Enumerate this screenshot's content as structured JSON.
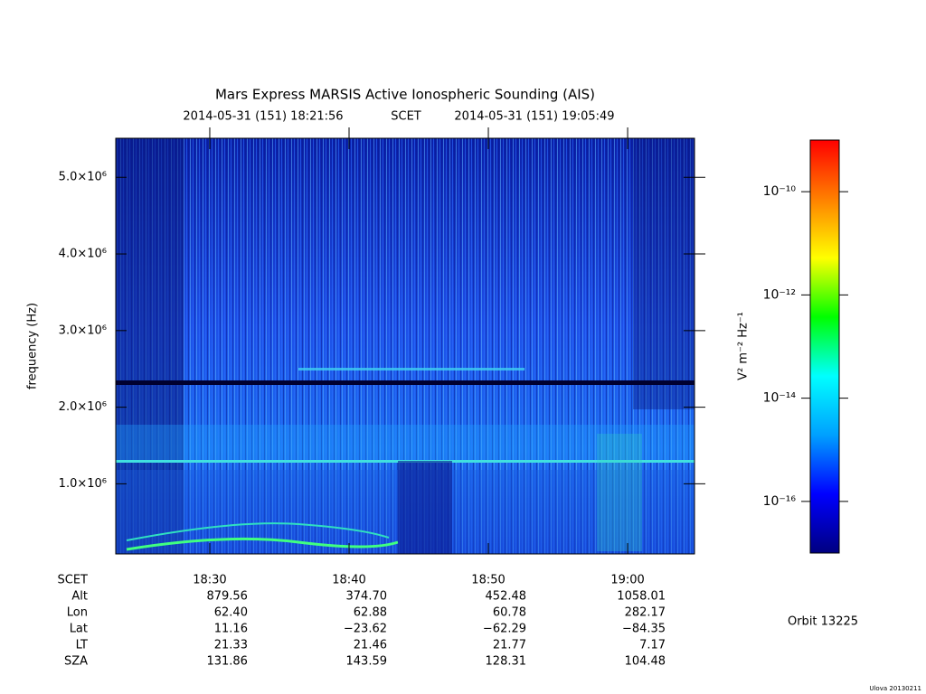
{
  "chart_data": {
    "type": "spectrogram",
    "title": "Mars Express MARSIS Active Ionospheric Sounding (AIS)",
    "subtitle": {
      "start": "2014-05-31 (151) 18:21:56",
      "label": "SCET",
      "end": "2014-05-31 (151) 19:05:49"
    },
    "y_label": "frequency (Hz)",
    "ylim": [
      85000,
      5510000
    ],
    "yticks": [
      {
        "value": 1000000,
        "label": "1.0×10⁶"
      },
      {
        "value": 2000000,
        "label": "2.0×10⁶"
      },
      {
        "value": 3000000,
        "label": "3.0×10⁶"
      },
      {
        "value": 4000000,
        "label": "4.0×10⁶"
      },
      {
        "value": 5000000,
        "label": "5.0×10⁶"
      }
    ],
    "xlim": [
      "18:23:15",
      "19:04:48"
    ],
    "xticks": [
      "18:30",
      "18:40",
      "18:50",
      "19:00"
    ],
    "ephemeris": {
      "x_label": "SCET",
      "rows": [
        {
          "label": "Alt",
          "values": [
            "879.56",
            "374.70",
            "452.48",
            "1058.01"
          ]
        },
        {
          "label": "Lon",
          "values": [
            "62.40",
            "62.88",
            "60.78",
            "282.17"
          ]
        },
        {
          "label": "Lat",
          "values": [
            "11.16",
            "−23.62",
            "−62.29",
            "−84.35"
          ]
        },
        {
          "label": "LT",
          "values": [
            "21.33",
            "21.46",
            "21.77",
            "7.17"
          ]
        },
        {
          "label": "SZA",
          "values": [
            "131.86",
            "143.59",
            "128.31",
            "104.48"
          ]
        }
      ]
    },
    "colorbar": {
      "label": "V² m⁻² Hz⁻¹",
      "log_scale": true,
      "zlim": [
        1e-17,
        1e-09
      ],
      "ticks": [
        {
          "value": 1e-10,
          "label": "10⁻¹⁰"
        },
        {
          "value": 1e-12,
          "label": "10⁻¹²"
        },
        {
          "value": 1e-14,
          "label": "10⁻¹⁴"
        },
        {
          "value": 1e-16,
          "label": "10⁻¹⁶"
        }
      ],
      "colormap": [
        "#000080",
        "#0000ff",
        "#00a0ff",
        "#00ffff",
        "#00ff00",
        "#ffff00",
        "#ff8000",
        "#ff0000"
      ]
    },
    "orbit": "Orbit 13225",
    "footer": "Ulova 20130211"
  }
}
